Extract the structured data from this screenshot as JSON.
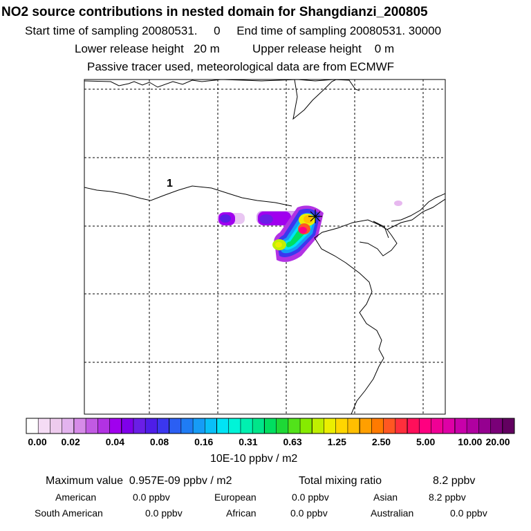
{
  "header": {
    "title": "NO2 source contributions in nested domain for Shangdianzi_200805",
    "start_label": "Start time of sampling",
    "start_value": "20080531.     0",
    "end_label": "End time of sampling",
    "end_value": "20080531. 30000",
    "lower_label": "Lower release height",
    "lower_value": "20 m",
    "upper_label": "Upper release height",
    "upper_value": "0 m",
    "tracer_note": "Passive tracer used, meteorological data are from ECMWF"
  },
  "map": {
    "region_label": "1",
    "station_marker": "asterisk-station-marker"
  },
  "colorbar": {
    "ticks": [
      "0.00",
      "0.02",
      "0.04",
      "0.08",
      "0.16",
      "0.31",
      "0.63",
      "1.25",
      "2.50",
      "5.00",
      "10.00",
      "20.00"
    ],
    "units": "10E-10 ppbv / m2",
    "colors": [
      "#ffffff",
      "#f5dcf5",
      "#eecbee",
      "#e3b3ee",
      "#d68be8",
      "#c15ae3",
      "#b232e3",
      "#a000ee",
      "#7f00ea",
      "#6a1ee6",
      "#4e1de8",
      "#3b37ef",
      "#2b5ff3",
      "#1f7cf4",
      "#169cf6",
      "#09bff8",
      "#00e4f5",
      "#00f4d8",
      "#00f0b0",
      "#00e58a",
      "#00de60",
      "#1ed836",
      "#52e21a",
      "#86eb00",
      "#bfef00",
      "#ebee00",
      "#ffd600",
      "#ffbf00",
      "#ff9f00",
      "#ff7a00",
      "#ff5722",
      "#ff2f3c",
      "#ff0f5a",
      "#ff0080",
      "#f00095",
      "#de00a6",
      "#c800aa",
      "#b000a0",
      "#950090",
      "#7a0078",
      "#620060"
    ]
  },
  "summary": {
    "max_label": "Maximum value",
    "max_value": "0.957E-09 ppbv / m2",
    "total_label": "Total mixing ratio",
    "total_value": "8.2 ppbv",
    "contributions": [
      {
        "name": "American",
        "value": "0.0 ppbv"
      },
      {
        "name": "European",
        "value": "0.0 ppbv"
      },
      {
        "name": "Asian",
        "value": "8.2 ppbv"
      },
      {
        "name": "South American",
        "value": "0.0 ppbv"
      },
      {
        "name": "African",
        "value": "0.0 ppbv"
      },
      {
        "name": "Australian",
        "value": "0.0 ppbv"
      }
    ]
  }
}
